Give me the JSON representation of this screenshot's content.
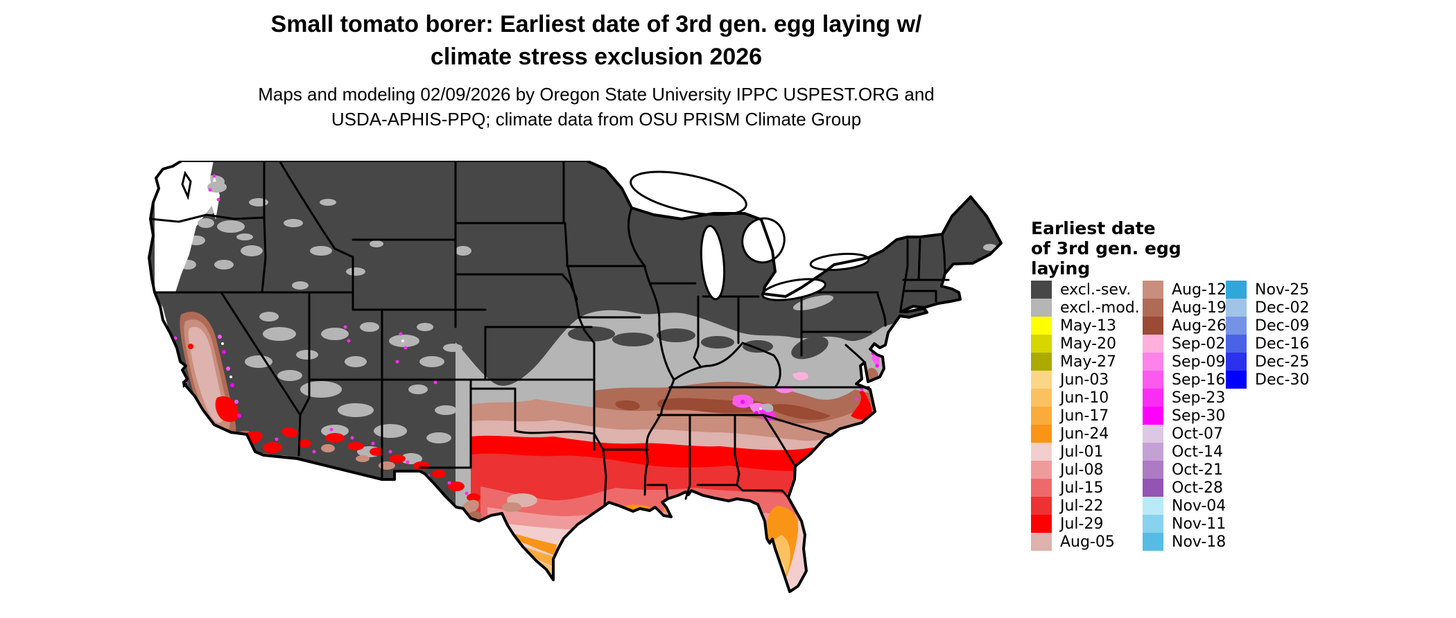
{
  "title": {
    "line1": "Small tomato borer: Earliest date of 3rd gen. egg laying w/",
    "line2": "climate stress exclusion 2026"
  },
  "subtitle": {
    "line1": "Maps and modeling 02/09/2026 by Oregon State University IPPC USPEST.ORG and",
    "line2": "USDA-APHIS-PPQ; climate data from OSU PRISM Climate Group"
  },
  "legend": {
    "title_lines": [
      "Earliest date",
      "of 3rd gen. egg",
      "laying"
    ],
    "columns": [
      {
        "entries": [
          {
            "label": "excl.-sev.",
            "color": "excl_sev"
          },
          {
            "label": "excl.-mod.",
            "color": "excl_mod"
          },
          {
            "label": "May-13",
            "color": "may13"
          },
          {
            "label": "May-20",
            "color": "may20"
          },
          {
            "label": "May-27",
            "color": "may27"
          },
          {
            "label": "Jun-03",
            "color": "jun03"
          },
          {
            "label": "Jun-10",
            "color": "jun10"
          },
          {
            "label": "Jun-17",
            "color": "jun17"
          },
          {
            "label": "Jun-24",
            "color": "jun24"
          },
          {
            "label": "Jul-01",
            "color": "jul01"
          },
          {
            "label": "Jul-08",
            "color": "jul08"
          },
          {
            "label": "Jul-15",
            "color": "jul15"
          },
          {
            "label": "Jul-22",
            "color": "jul22"
          },
          {
            "label": "Jul-29",
            "color": "jul29"
          },
          {
            "label": "Aug-05",
            "color": "aug05"
          }
        ]
      },
      {
        "entries": [
          {
            "label": "Aug-12",
            "color": "aug12"
          },
          {
            "label": "Aug-19",
            "color": "aug19"
          },
          {
            "label": "Aug-26",
            "color": "aug26"
          },
          {
            "label": "Sep-02",
            "color": "sep02"
          },
          {
            "label": "Sep-09",
            "color": "sep09"
          },
          {
            "label": "Sep-16",
            "color": "sep16"
          },
          {
            "label": "Sep-23",
            "color": "sep23"
          },
          {
            "label": "Sep-30",
            "color": "sep30"
          },
          {
            "label": "Oct-07",
            "color": "oct07"
          },
          {
            "label": "Oct-14",
            "color": "oct14"
          },
          {
            "label": "Oct-21",
            "color": "oct21"
          },
          {
            "label": "Oct-28",
            "color": "oct28"
          },
          {
            "label": "Nov-04",
            "color": "nov04"
          },
          {
            "label": "Nov-11",
            "color": "nov11"
          },
          {
            "label": "Nov-18",
            "color": "nov18"
          }
        ]
      },
      {
        "entries": [
          {
            "label": "Nov-25",
            "color": "nov25"
          },
          {
            "label": "Dec-02",
            "color": "dec02"
          },
          {
            "label": "Dec-09",
            "color": "dec09"
          },
          {
            "label": "Dec-16",
            "color": "dec16"
          },
          {
            "label": "Dec-25",
            "color": "dec25"
          },
          {
            "label": "Dec-30",
            "color": "dec30"
          }
        ]
      }
    ]
  },
  "colors": {
    "excl_sev": "#474747",
    "excl_mod": "#B5B5B5",
    "may13": "#FFFF00",
    "may20": "#D6D600",
    "may27": "#ACAA00",
    "jun03": "#FBD687",
    "jun10": "#FBC161",
    "jun17": "#FAAB3C",
    "jun24": "#F99417",
    "jul01": "#F2CECE",
    "jul08": "#F09B9B",
    "jul15": "#EE6A6A",
    "jul22": "#EC3232",
    "jul29": "#FF0000",
    "aug05": "#DEB2AD",
    "aug12": "#C98E7D",
    "aug19": "#AF6B56",
    "aug26": "#9B4A34",
    "sep02": "#FFB0DC",
    "sep09": "#FC83E9",
    "sep16": "#FC5AEF",
    "sep23": "#FB2DF5",
    "sep30": "#FF00FF",
    "oct07": "#DCC7E4",
    "oct14": "#C4A1D4",
    "oct21": "#AC7BC4",
    "oct28": "#9354B4",
    "nov04": "#BAEAF7",
    "nov11": "#87D3ED",
    "nov18": "#57BCE4",
    "nov25": "#2FA7DA",
    "dec02": "#A0C4E8",
    "dec09": "#7593E5",
    "dec16": "#4A62E6",
    "dec25": "#2A32ED",
    "dec30": "#0000FF",
    "water": "#FFFFFF",
    "outline": "#000000"
  }
}
